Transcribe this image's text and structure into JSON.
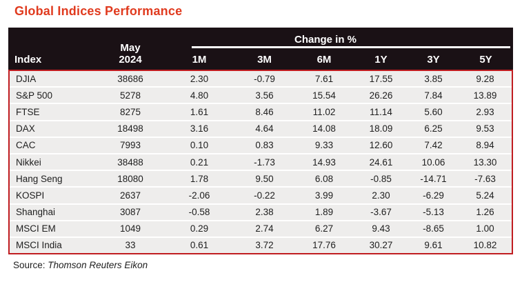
{
  "title": "Global Indices Performance",
  "colors": {
    "title_color": "#e03a1e",
    "header_bg": "#1a1115",
    "header_text": "#ffffff",
    "row_bg": "#eeedec",
    "row_divider": "#ffffff",
    "border_color": "#c01c20",
    "text_color": "#1d1d1d"
  },
  "table": {
    "index_header": "Index",
    "period_header": "May\n2024",
    "group_header": "Change in %",
    "change_columns": [
      "1M",
      "3M",
      "6M",
      "1Y",
      "3Y",
      "5Y"
    ],
    "rows": [
      {
        "index": "DJIA",
        "value": "38686",
        "changes": [
          "2.30",
          "-0.79",
          "7.61",
          "17.55",
          "3.85",
          "9.28"
        ]
      },
      {
        "index": "S&P 500",
        "value": "5278",
        "changes": [
          "4.80",
          "3.56",
          "15.54",
          "26.26",
          "7.84",
          "13.89"
        ]
      },
      {
        "index": "FTSE",
        "value": "8275",
        "changes": [
          "1.61",
          "8.46",
          "11.02",
          "11.14",
          "5.60",
          "2.93"
        ]
      },
      {
        "index": "DAX",
        "value": "18498",
        "changes": [
          "3.16",
          "4.64",
          "14.08",
          "18.09",
          "6.25",
          "9.53"
        ]
      },
      {
        "index": "CAC",
        "value": "7993",
        "changes": [
          "0.10",
          "0.83",
          "9.33",
          "12.60",
          "7.42",
          "8.94"
        ]
      },
      {
        "index": "Nikkei",
        "value": "38488",
        "changes": [
          "0.21",
          "-1.73",
          "14.93",
          "24.61",
          "10.06",
          "13.30"
        ]
      },
      {
        "index": "Hang Seng",
        "value": "18080",
        "changes": [
          "1.78",
          "9.50",
          "6.08",
          "-0.85",
          "-14.71",
          "-7.63"
        ]
      },
      {
        "index": "KOSPI",
        "value": "2637",
        "changes": [
          "-2.06",
          "-0.22",
          "3.99",
          "2.30",
          "-6.29",
          "5.24"
        ]
      },
      {
        "index": "Shanghai",
        "value": "3087",
        "changes": [
          "-0.58",
          "2.38",
          "1.89",
          "-3.67",
          "-5.13",
          "1.26"
        ]
      },
      {
        "index": "MSCI EM",
        "value": "1049",
        "changes": [
          "0.29",
          "2.74",
          "6.27",
          "9.43",
          "-8.65",
          "1.00"
        ]
      },
      {
        "index": "MSCI India",
        "value": "33",
        "changes": [
          "0.61",
          "3.72",
          "17.76",
          "30.27",
          "9.61",
          "10.82"
        ]
      }
    ]
  },
  "source": {
    "label": "Source:",
    "value": "Thomson Reuters Eikon"
  },
  "chart_data": {
    "type": "table",
    "title": "Global Indices Performance",
    "columns": [
      "Index",
      "May 2024",
      "1M",
      "3M",
      "6M",
      "1Y",
      "3Y",
      "5Y"
    ],
    "group_header": {
      "label": "Change in %",
      "spans": [
        "1M",
        "3M",
        "6M",
        "1Y",
        "3Y",
        "5Y"
      ]
    },
    "rows": [
      [
        "DJIA",
        38686,
        2.3,
        -0.79,
        7.61,
        17.55,
        3.85,
        9.28
      ],
      [
        "S&P 500",
        5278,
        4.8,
        3.56,
        15.54,
        26.26,
        7.84,
        13.89
      ],
      [
        "FTSE",
        8275,
        1.61,
        8.46,
        11.02,
        11.14,
        5.6,
        2.93
      ],
      [
        "DAX",
        18498,
        3.16,
        4.64,
        14.08,
        18.09,
        6.25,
        9.53
      ],
      [
        "CAC",
        7993,
        0.1,
        0.83,
        9.33,
        12.6,
        7.42,
        8.94
      ],
      [
        "Nikkei",
        38488,
        0.21,
        -1.73,
        14.93,
        24.61,
        10.06,
        13.3
      ],
      [
        "Hang Seng",
        18080,
        1.78,
        9.5,
        6.08,
        -0.85,
        -14.71,
        -7.63
      ],
      [
        "KOSPI",
        2637,
        -2.06,
        -0.22,
        3.99,
        2.3,
        -6.29,
        5.24
      ],
      [
        "Shanghai",
        3087,
        -0.58,
        2.38,
        1.89,
        -3.67,
        -5.13,
        1.26
      ],
      [
        "MSCI EM",
        1049,
        0.29,
        2.74,
        6.27,
        9.43,
        -8.65,
        1.0
      ],
      [
        "MSCI India",
        33,
        0.61,
        3.72,
        17.76,
        30.27,
        9.61,
        10.82
      ]
    ],
    "source": "Thomson Reuters Eikon"
  }
}
